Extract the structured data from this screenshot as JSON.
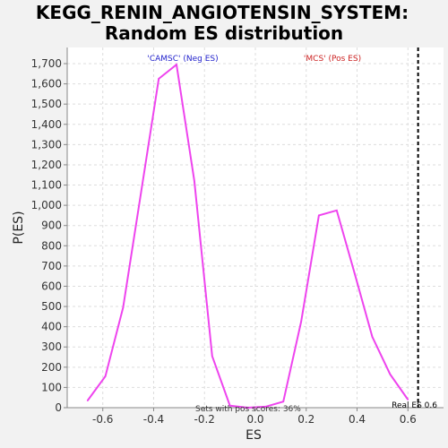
{
  "chart_data": {
    "type": "line",
    "title_line1": "KEGG_RENIN_ANGIOTENSIN_SYSTEM:",
    "title_line2": "Random ES distribution",
    "xlabel": "ES",
    "ylabel": "P(ES)",
    "xlim": [
      -0.74,
      0.74
    ],
    "ylim": [
      0,
      1700
    ],
    "x_ticks": [
      -0.6,
      -0.4,
      -0.2,
      0.0,
      0.2,
      0.4,
      0.6
    ],
    "x_tick_labels": [
      "-0.6",
      "-0.4",
      "-0.2",
      "0.0",
      "0.2",
      "0.4",
      "0.6"
    ],
    "y_ticks": [
      0,
      100,
      200,
      300,
      400,
      500,
      600,
      700,
      800,
      900,
      1000,
      1100,
      1200,
      1300,
      1400,
      1500,
      1600,
      1700
    ],
    "y_tick_labels": [
      "0",
      "100",
      "200",
      "300",
      "400",
      "500",
      "600",
      "700",
      "800",
      "900",
      "1,000",
      "1,100",
      "1,200",
      "1,300",
      "1,400",
      "1,500",
      "1,600",
      "1,700"
    ],
    "grid": true,
    "series": [
      {
        "color": "#ee44ee",
        "x": [
          -0.66,
          -0.59,
          -0.52,
          -0.45,
          -0.38,
          -0.31,
          -0.24,
          -0.17,
          -0.1,
          -0.03,
          0.04,
          0.11,
          0.18,
          0.25,
          0.32,
          0.39,
          0.46,
          0.53,
          0.6
        ],
        "y": [
          35,
          155,
          495,
          1060,
          1625,
          1695,
          1120,
          255,
          10,
          0,
          5,
          30,
          425,
          950,
          975,
          665,
          350,
          165,
          40
        ]
      }
    ],
    "real_es": {
      "x": 0.64,
      "label": "Real ES 0.6"
    },
    "annotations": {
      "neg_label": "'CAMSC' (Neg ES)",
      "pos_label": "'MCS' (Pos ES)",
      "bottom_note": "Sets with pos scores: 36%"
    },
    "colors": {
      "neg": "#2222cc",
      "pos": "#cc2222",
      "curve": "#ee44ee",
      "background": "#ffffff"
    }
  }
}
